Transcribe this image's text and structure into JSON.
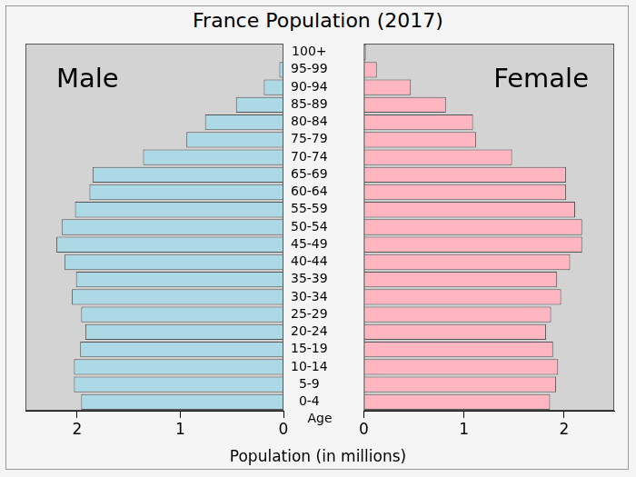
{
  "chart_data": {
    "type": "bar",
    "orientation": "horizontal",
    "title": "France Population (2017)",
    "x_label": "Population (in millions)",
    "y_label": "Age",
    "categories": [
      "0-4",
      "5-9",
      "10-14",
      "15-19",
      "20-24",
      "25-29",
      "30-34",
      "35-39",
      "40-44",
      "45-49",
      "50-54",
      "55-59",
      "60-64",
      "65-69",
      "70-74",
      "75-79",
      "80-84",
      "85-89",
      "90-94",
      "95-99",
      "100+"
    ],
    "series": [
      {
        "name": "Male",
        "color": "#add8e6",
        "values": [
          1.96,
          2.03,
          2.03,
          1.97,
          1.92,
          1.96,
          2.05,
          2.01,
          2.12,
          2.2,
          2.15,
          2.02,
          1.88,
          1.85,
          1.36,
          0.94,
          0.76,
          0.46,
          0.19,
          0.04,
          0.005
        ]
      },
      {
        "name": "Female",
        "color": "#ffb6c1",
        "values": [
          1.86,
          1.92,
          1.94,
          1.89,
          1.82,
          1.87,
          1.97,
          1.93,
          2.06,
          2.18,
          2.18,
          2.11,
          2.02,
          2.02,
          1.48,
          1.12,
          1.09,
          0.82,
          0.47,
          0.13,
          0.02
        ]
      }
    ],
    "xlim": [
      0,
      2.5
    ],
    "xticks": [
      0,
      1,
      2
    ]
  }
}
